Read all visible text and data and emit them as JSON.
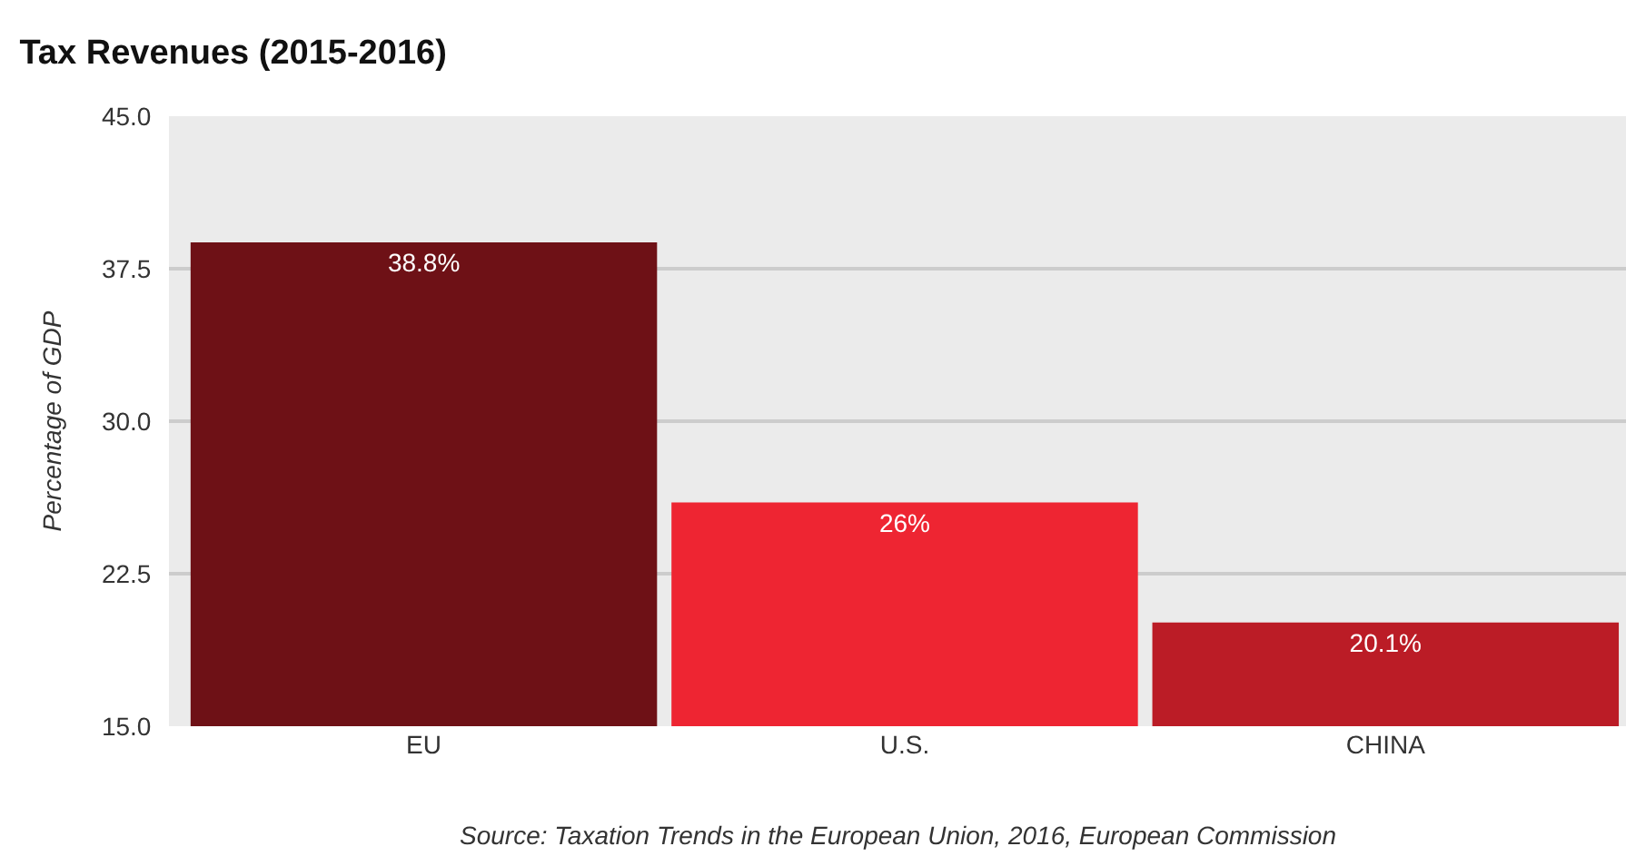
{
  "chart_data": {
    "type": "bar",
    "title": "Tax Revenues (2015-2016)",
    "ylabel": "Percentage of GDP",
    "categories": [
      "EU",
      "U.S.",
      "CHINA"
    ],
    "values": [
      38.8,
      26,
      20.1
    ],
    "value_labels": [
      "38.8%",
      "26%",
      "20.1%"
    ],
    "colors": [
      "#6e1116",
      "#ee2532",
      "#bb1c26"
    ],
    "ylim": [
      15,
      45
    ],
    "yticks": [
      {
        "value": 15,
        "label": "15.0"
      },
      {
        "value": 22.5,
        "label": "22.5"
      },
      {
        "value": 30,
        "label": "30.0"
      },
      {
        "value": 37.5,
        "label": "37.5"
      },
      {
        "value": 45,
        "label": "45.0"
      }
    ],
    "grid": "y",
    "annotations": [
      "Source: Taxation Trends in the European Union, 2016, European Commission"
    ]
  }
}
